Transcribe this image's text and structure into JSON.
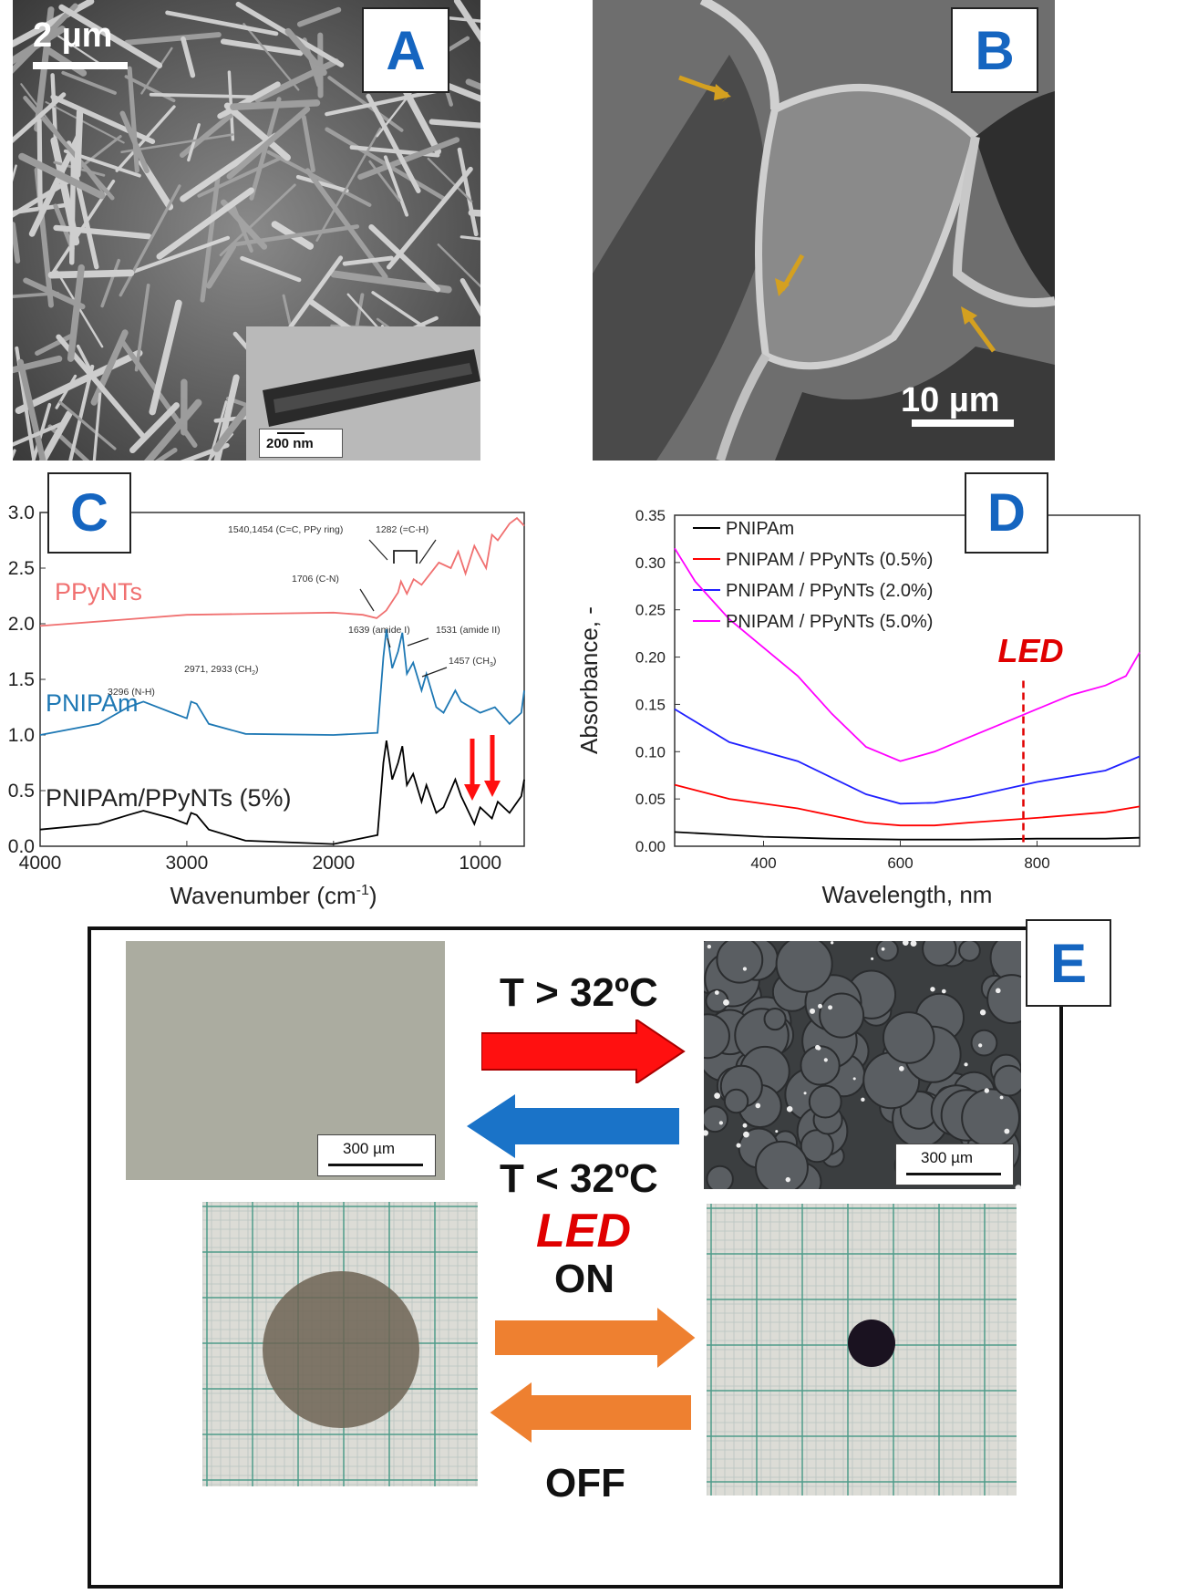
{
  "panelA": {
    "letter": "A",
    "scalebar": "2 µm",
    "inset_scalebar": "200 nm"
  },
  "panelB": {
    "letter": "B",
    "scalebar": "10 µm"
  },
  "panelC": {
    "letter": "C",
    "xlabel": "Wavenumber (cm",
    "xlabel_sup": "-1",
    "xlabel_end": ")",
    "series_labels": [
      "PPyNTs",
      "PNIPAm",
      "PNIPAm/PPyNTs (5%)"
    ],
    "annotations": [
      "1540,1454 (C=C, PPy ring)",
      "1282 (=C-H)",
      "1706 (C-N)",
      "1639 (amide I)",
      "1531 (amide II)",
      "1457 (CH",
      "2971, 2933 (CH",
      "3296 (N-H)"
    ],
    "sub2": "2",
    "sub3": "3",
    "close": ")"
  },
  "panelD": {
    "letter": "D",
    "ylabel": "Absorbance, -",
    "xlabel": "Wavelength, nm",
    "led_label": "LED"
  },
  "panelE": {
    "letter": "E",
    "t_up": "T > 32ºC",
    "t_down": "T < 32ºC",
    "scalebar_left": "300 µm",
    "scalebar_right": "300 µm",
    "led": "LED",
    "on": "ON",
    "off": "OFF"
  },
  "colors": {
    "letter": "#1565c0",
    "ppy": "#f07070",
    "pnipam": "#1e78b4",
    "composite": "#000000",
    "d_black": "#000000",
    "d_red": "#ff0000",
    "d_blue": "#2020ff",
    "d_magenta": "#ff00ff",
    "led": "#e00000",
    "arrow_red": "#ff1010",
    "arrow_blue": "#1a73c8",
    "arrow_orange": "#ee8030"
  },
  "chart_data": [
    {
      "type": "line",
      "panel": "C",
      "x_label": "Wavenumber (cm-1)",
      "xlim": [
        4000,
        700
      ],
      "ylim": [
        0.0,
        3.0
      ],
      "x_ticks": [
        4000,
        3000,
        2000,
        1000
      ],
      "y_ticks": [
        0.0,
        0.5,
        1.0,
        1.5,
        2.0,
        2.5,
        3.0
      ],
      "series": [
        {
          "name": "PPyNTs",
          "x": [
            4000,
            3500,
            3000,
            2500,
            2000,
            1800,
            1706,
            1640,
            1560,
            1540,
            1500,
            1454,
            1400,
            1282,
            1200,
            1150,
            1100,
            1040,
            1000,
            960,
            920,
            880,
            800,
            750,
            700
          ],
          "y": [
            1.98,
            2.03,
            2.08,
            2.09,
            2.1,
            2.08,
            2.05,
            2.12,
            2.28,
            2.38,
            2.27,
            2.4,
            2.35,
            2.55,
            2.5,
            2.65,
            2.45,
            2.7,
            2.6,
            2.5,
            2.8,
            2.75,
            2.9,
            2.95,
            2.88
          ]
        },
        {
          "name": "PNIPAm",
          "x": [
            4000,
            3600,
            3400,
            3296,
            3100,
            3000,
            2971,
            2933,
            2850,
            2600,
            2000,
            1700,
            1660,
            1639,
            1600,
            1560,
            1531,
            1500,
            1457,
            1400,
            1367,
            1300,
            1250,
            1170,
            1130,
            1000,
            900,
            800,
            720,
            700
          ],
          "y": [
            1.0,
            1.1,
            1.25,
            1.3,
            1.2,
            1.15,
            1.3,
            1.28,
            1.1,
            1.01,
            1.0,
            1.02,
            1.7,
            1.95,
            1.6,
            1.75,
            1.92,
            1.55,
            1.65,
            1.4,
            1.55,
            1.25,
            1.2,
            1.4,
            1.3,
            1.2,
            1.25,
            1.1,
            1.2,
            1.4
          ]
        },
        {
          "name": "PNIPAm/PPyNTs (5%)",
          "x": [
            4000,
            3600,
            3400,
            3296,
            3100,
            3000,
            2971,
            2933,
            2850,
            2600,
            2000,
            1700,
            1660,
            1639,
            1600,
            1560,
            1531,
            1500,
            1457,
            1400,
            1367,
            1300,
            1250,
            1170,
            1130,
            1040,
            1000,
            920,
            880,
            800,
            720,
            700
          ],
          "y": [
            0.15,
            0.2,
            0.28,
            0.32,
            0.25,
            0.2,
            0.3,
            0.28,
            0.15,
            0.05,
            0.02,
            0.1,
            0.75,
            0.95,
            0.6,
            0.75,
            0.9,
            0.55,
            0.65,
            0.4,
            0.55,
            0.3,
            0.35,
            0.6,
            0.45,
            0.2,
            0.35,
            0.25,
            0.4,
            0.3,
            0.45,
            0.6
          ]
        }
      ]
    },
    {
      "type": "line",
      "panel": "D",
      "x_label": "Wavelength, nm",
      "y_label": "Absorbance, -",
      "xlim": [
        270,
        950
      ],
      "ylim": [
        0.0,
        0.35
      ],
      "x_ticks": [
        400,
        600,
        800
      ],
      "y_ticks": [
        0.0,
        0.05,
        0.1,
        0.15,
        0.2,
        0.25,
        0.3,
        0.35
      ],
      "legend_position": "top",
      "annotation": {
        "text": "LED",
        "x": 780
      },
      "series": [
        {
          "name": "PNIPAm",
          "x": [
            270,
            400,
            500,
            600,
            700,
            800,
            900,
            950
          ],
          "y": [
            0.015,
            0.01,
            0.008,
            0.007,
            0.007,
            0.008,
            0.008,
            0.009
          ]
        },
        {
          "name": "PNIPAM / PPyNTs (0.5%)",
          "x": [
            270,
            350,
            450,
            550,
            600,
            650,
            700,
            800,
            900,
            950
          ],
          "y": [
            0.065,
            0.05,
            0.04,
            0.025,
            0.022,
            0.022,
            0.025,
            0.03,
            0.036,
            0.042
          ]
        },
        {
          "name": "PNIPAM / PPyNTs (2.0%)",
          "x": [
            270,
            350,
            450,
            550,
            600,
            650,
            700,
            800,
            900,
            950
          ],
          "y": [
            0.145,
            0.11,
            0.09,
            0.055,
            0.045,
            0.046,
            0.052,
            0.068,
            0.08,
            0.095
          ]
        },
        {
          "name": "PNIPAM / PPyNTs (5.0%)",
          "x": [
            270,
            300,
            350,
            400,
            450,
            500,
            550,
            600,
            650,
            700,
            750,
            800,
            850,
            900,
            930,
            950
          ],
          "y": [
            0.315,
            0.28,
            0.24,
            0.21,
            0.18,
            0.14,
            0.105,
            0.09,
            0.1,
            0.115,
            0.13,
            0.145,
            0.16,
            0.17,
            0.18,
            0.205
          ]
        }
      ]
    }
  ]
}
